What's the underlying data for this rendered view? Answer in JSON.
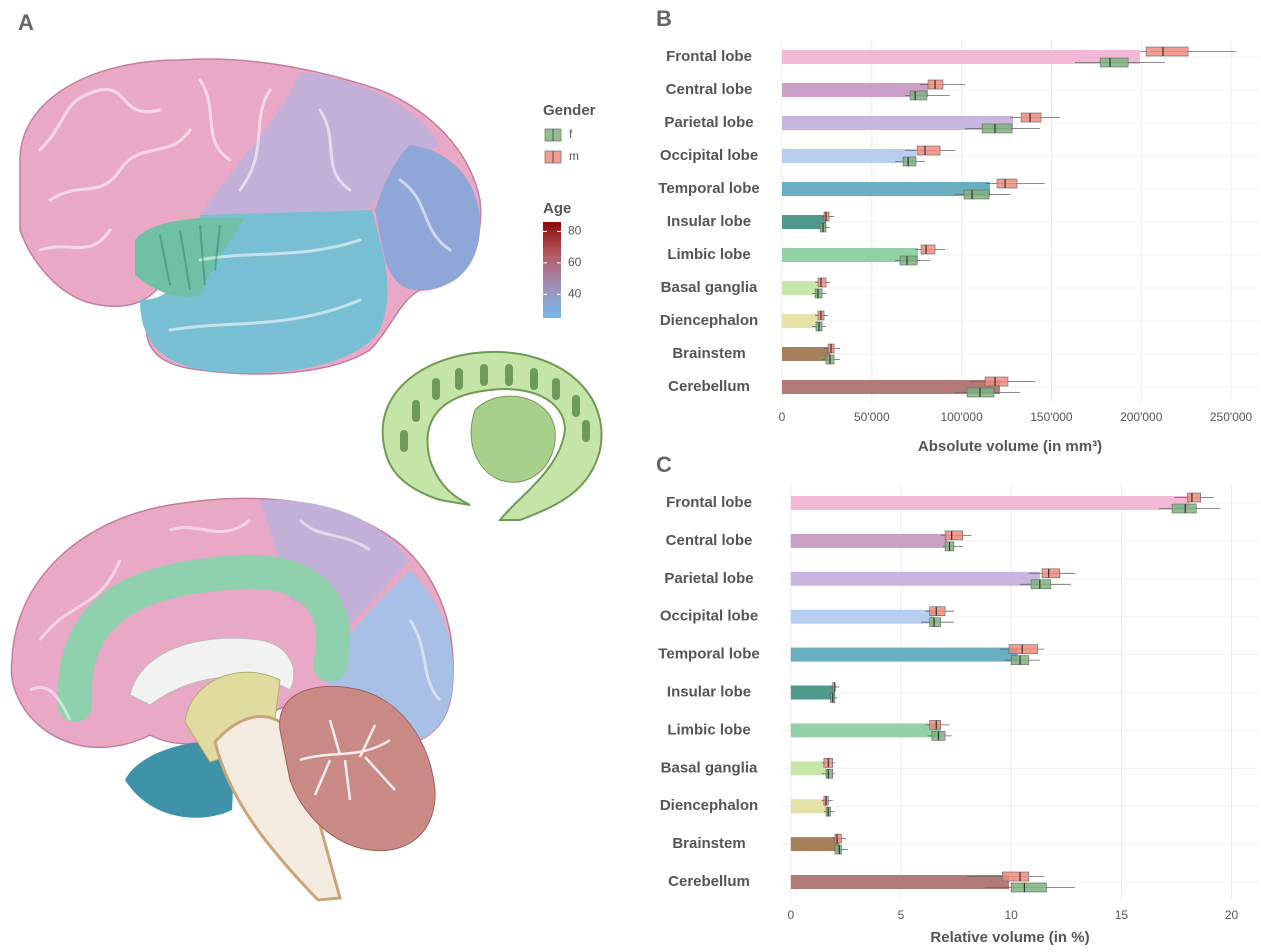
{
  "illustration": {
    "panel": "A"
  },
  "legend": {
    "gender_title": "Gender",
    "age": {
      "title": "Age",
      "range": [
        25,
        86
      ],
      "ticks": [
        40,
        60,
        80
      ],
      "colors": [
        "#74b8ea",
        "#a08fb8",
        "#b2585f",
        "#8a0a0a"
      ]
    }
  },
  "chart_data": [
    {
      "type": "bar",
      "panel": "B",
      "xlabel": "Absolute volume (in mm³)",
      "categories": [
        "Frontal lobe",
        "Central lobe",
        "Parietal lobe",
        "Occipital lobe",
        "Temporal lobe",
        "Insular lobe",
        "Limbic lobe",
        "Basal ganglia",
        "Diencephalon",
        "Brainstem",
        "Cerebellum"
      ],
      "values": [
        199300,
        81300,
        128600,
        74600,
        115800,
        24500,
        75700,
        20000,
        20000,
        26700,
        121400
      ],
      "colors": [
        "#f3b8d6",
        "#caa0c6",
        "#c9b6de",
        "#b7ceef",
        "#6aaec2",
        "#4f9a8c",
        "#92d1a8",
        "#c8e6aa",
        "#e6e1a6",
        "#a4805b",
        "#b27b76"
      ],
      "boxes": [
        {
          "name": "f",
          "color": "#7fb27f",
          "whisker_low": [
            163100,
            68500,
            101900,
            62900,
            96300,
            20000,
            62900,
            16700,
            16700,
            22300,
            96300
          ],
          "q1": [
            177100,
            71300,
            111400,
            67400,
            101300,
            21200,
            65700,
            18400,
            18900,
            24500,
            103000
          ],
          "median": [
            182600,
            74100,
            118600,
            70200,
            105800,
            22800,
            69600,
            20000,
            20600,
            26700,
            110200
          ],
          "q3": [
            192700,
            80700,
            128100,
            74600,
            115300,
            24500,
            75200,
            22300,
            22300,
            29000,
            118000
          ],
          "whisker_high": [
            213300,
            93500,
            143700,
            79600,
            127000,
            26700,
            82400,
            24500,
            24500,
            32300,
            132500
          ]
        },
        {
          "name": "m",
          "color": "#f08a7d",
          "whisker_low": [
            199300,
            76800,
            127000,
            68500,
            113000,
            22300,
            74100,
            18400,
            18400,
            23400,
            104700
          ],
          "q1": [
            202700,
            81300,
            133100,
            75200,
            119700,
            23400,
            77400,
            20000,
            20000,
            25600,
            113000
          ],
          "median": [
            212100,
            85200,
            138100,
            79600,
            124200,
            24500,
            80200,
            21700,
            21700,
            27300,
            118600
          ],
          "q3": [
            226100,
            89600,
            144200,
            88000,
            130800,
            26200,
            85200,
            24500,
            23400,
            29000,
            125800
          ],
          "whisker_high": [
            252800,
            101900,
            154800,
            96300,
            146400,
            29000,
            90800,
            26700,
            25600,
            32300,
            140900
          ]
        }
      ],
      "xlim": [
        0,
        265000
      ],
      "xticks": [
        0,
        {
          "value": 50000,
          "label": "50'000"
        },
        {
          "value": 100000,
          "label": "100'000"
        },
        {
          "value": 150000,
          "label": "150'000"
        },
        {
          "value": 200000,
          "label": "200'000"
        },
        {
          "value": 250000,
          "label": "250'000"
        }
      ],
      "grid": true
    },
    {
      "type": "bar",
      "panel": "C",
      "xlabel": "Relative volume (in %)",
      "categories": [
        "Frontal lobe",
        "Central lobe",
        "Parietal lobe",
        "Occipital lobe",
        "Temporal lobe",
        "Insular lobe",
        "Limbic lobe",
        "Basal ganglia",
        "Diencephalon",
        "Brainstem",
        "Cerebellum"
      ],
      "values": [
        18.1,
        7.1,
        11.3,
        6.5,
        10.3,
        2.0,
        6.8,
        1.6,
        1.6,
        2.2,
        9.9
      ],
      "colors": [
        "#f3b8d6",
        "#caa0c6",
        "#c9b6de",
        "#b7ceef",
        "#6aaec2",
        "#4f9a8c",
        "#92d1a8",
        "#c8e6aa",
        "#e6e1a6",
        "#a4805b",
        "#b27b76"
      ],
      "boxes": [
        {
          "name": "f",
          "color": "#7fb27f",
          "whisker_low": [
            16.7,
            6.9,
            10.4,
            5.9,
            9.7,
            1.7,
            6.2,
            1.4,
            1.5,
            2.0,
            8.8
          ],
          "q1": [
            17.3,
            7.0,
            10.9,
            6.3,
            10.0,
            1.8,
            6.4,
            1.6,
            1.6,
            2.0,
            10.0
          ],
          "median": [
            17.9,
            7.2,
            11.3,
            6.5,
            10.4,
            1.9,
            6.7,
            1.7,
            1.7,
            2.2,
            10.6
          ],
          "q3": [
            18.4,
            7.4,
            11.8,
            6.8,
            10.8,
            2.0,
            7.0,
            1.9,
            1.8,
            2.3,
            11.6
          ],
          "whisker_high": [
            19.5,
            7.8,
            12.7,
            7.4,
            11.3,
            2.1,
            7.3,
            2.0,
            2.0,
            2.6,
            12.9
          ]
        },
        {
          "name": "m",
          "color": "#f08a7d",
          "whisker_low": [
            17.4,
            6.8,
            10.8,
            6.1,
            9.5,
            1.8,
            6.1,
            1.4,
            1.4,
            1.9,
            8.0
          ],
          "q1": [
            18.0,
            7.0,
            11.4,
            6.3,
            9.9,
            1.9,
            6.3,
            1.5,
            1.5,
            2.0,
            9.6
          ],
          "median": [
            18.2,
            7.3,
            11.7,
            6.6,
            10.5,
            2.0,
            6.6,
            1.7,
            1.6,
            2.1,
            10.4
          ],
          "q3": [
            18.6,
            7.8,
            12.2,
            7.0,
            11.2,
            2.0,
            6.8,
            1.9,
            1.7,
            2.3,
            10.8
          ],
          "whisker_high": [
            19.2,
            8.2,
            12.9,
            7.4,
            11.5,
            2.2,
            7.2,
            2.0,
            1.9,
            2.5,
            11.5
          ]
        }
      ],
      "xlim": [
        -0.4,
        21.2
      ],
      "xticks": [
        0,
        5,
        10,
        15,
        20
      ],
      "grid": true
    }
  ]
}
